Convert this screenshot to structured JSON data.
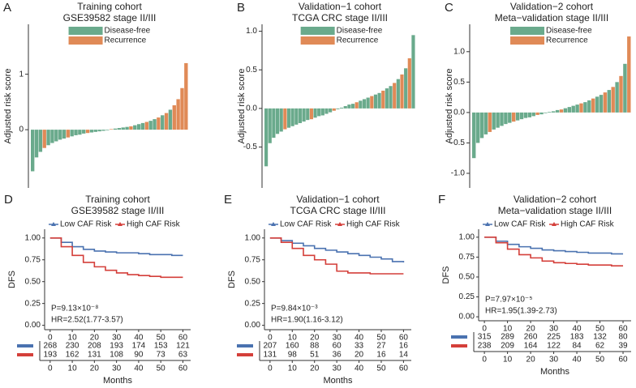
{
  "chart_data": [
    {
      "type": "bar",
      "label": "A",
      "title": "Training cohort",
      "subtitle": "GSE39582 stage II/III",
      "ylabel": "Adjusted risk score",
      "ylim": [
        -1.05,
        1.9
      ],
      "yticks": [
        0,
        1
      ],
      "series": [
        {
          "name": "Disease-free",
          "color": "#6aaa8c",
          "values": [
            -0.75,
            -0.5,
            -0.4,
            null,
            -0.28,
            -0.24,
            -0.21,
            -0.18,
            -0.16,
            null,
            -0.12,
            -0.1,
            -0.09,
            -0.07,
            null,
            -0.05,
            -0.04,
            -0.03,
            -0.02,
            -0.01,
            null,
            0.02,
            0.03,
            0.04,
            0.05,
            null,
            0.08,
            0.1,
            0.12,
            null,
            0.16,
            0.19,
            null,
            0.26,
            null,
            0.36,
            null,
            null,
            null,
            null
          ]
        },
        {
          "name": "Recurrence",
          "color": "#e08a57",
          "values": [
            null,
            null,
            null,
            -0.33,
            null,
            null,
            null,
            null,
            null,
            -0.14,
            null,
            null,
            null,
            null,
            -0.06,
            null,
            null,
            null,
            null,
            null,
            0.01,
            null,
            null,
            null,
            null,
            0.06,
            null,
            null,
            null,
            0.14,
            null,
            null,
            0.22,
            null,
            0.3,
            null,
            0.44,
            0.55,
            0.75,
            1.2
          ]
        }
      ]
    },
    {
      "type": "bar",
      "label": "B",
      "title": "Validation−1 cohort",
      "subtitle": "TCGA CRC stage II/III",
      "ylabel": "Adjusted risk score",
      "ylim": [
        -1.03,
        1.09
      ],
      "yticks": [
        {
          "value": 1,
          "label": "1.0"
        },
        0.5,
        {
          "value": 0,
          "label": "0.0"
        },
        -0.5
      ],
      "series": [
        {
          "name": "Disease-free",
          "color": "#6aaa8c",
          "values": [
            -0.75,
            -0.45,
            -0.38,
            -0.33,
            -0.3,
            null,
            -0.25,
            -0.23,
            -0.21,
            -0.19,
            -0.17,
            -0.15,
            null,
            -0.12,
            -0.1,
            -0.09,
            -0.07,
            -0.05,
            null,
            -0.01,
            0.01,
            0.03,
            0.05,
            0.06,
            null,
            0.1,
            0.12,
            0.14,
            null,
            0.18,
            0.2,
            null,
            0.26,
            0.29,
            null,
            0.38,
            null,
            0.52,
            null,
            0.95
          ]
        },
        {
          "name": "Recurrence",
          "color": "#e08a57",
          "values": [
            null,
            null,
            null,
            null,
            null,
            -0.27,
            null,
            null,
            null,
            null,
            null,
            null,
            -0.14,
            null,
            null,
            null,
            null,
            null,
            -0.03,
            null,
            null,
            null,
            null,
            null,
            0.08,
            null,
            null,
            null,
            0.16,
            null,
            null,
            0.23,
            null,
            null,
            0.33,
            null,
            0.44,
            null,
            0.65,
            null
          ]
        }
      ]
    },
    {
      "type": "bar",
      "label": "C",
      "title": "Validation−2 cohort",
      "subtitle": "Meta−validation stage II/III",
      "ylabel": "Adjusted risk score",
      "ylim": [
        -1.24,
        1.45
      ],
      "yticks": [
        {
          "value": 1,
          "label": "1.0"
        },
        0.5,
        {
          "value": 0,
          "label": "0.0"
        },
        -0.5,
        {
          "value": -1,
          "label": "-1.0"
        }
      ],
      "series": [
        {
          "name": "Disease-free",
          "color": "#6aaa8c",
          "values": [
            -0.75,
            -0.5,
            -0.42,
            -0.36,
            null,
            -0.28,
            -0.25,
            -0.22,
            -0.19,
            -0.17,
            null,
            -0.13,
            -0.11,
            -0.09,
            -0.08,
            -0.06,
            null,
            -0.03,
            -0.01,
            0.01,
            0.02,
            0.04,
            null,
            0.07,
            0.09,
            0.11,
            0.13,
            null,
            0.17,
            0.2,
            null,
            0.26,
            0.29,
            null,
            0.37,
            null,
            0.5,
            null,
            0.8,
            null
          ]
        },
        {
          "name": "Recurrence",
          "color": "#e08a57",
          "values": [
            null,
            null,
            null,
            null,
            -0.32,
            null,
            null,
            null,
            null,
            null,
            -0.15,
            null,
            null,
            null,
            null,
            null,
            -0.04,
            null,
            null,
            null,
            null,
            null,
            0.05,
            null,
            null,
            null,
            null,
            0.15,
            null,
            null,
            0.23,
            null,
            null,
            0.33,
            null,
            0.42,
            null,
            0.6,
            null,
            1.25
          ]
        }
      ]
    },
    {
      "type": "line",
      "step": true,
      "label": "D",
      "title": "Training cohort",
      "subtitle": "GSE39582 stage II/III",
      "ylabel": "DFS",
      "xlabel": "Months",
      "xlim": [
        -2.5,
        63.5
      ],
      "xticks": [
        0,
        10,
        20,
        30,
        40,
        50,
        60
      ],
      "ylim": [
        -0.05,
        1.1
      ],
      "yticks": [
        {
          "value": 0,
          "label": "0.00"
        },
        0.25,
        {
          "value": 0.5,
          "label": "0.50"
        },
        0.75,
        {
          "value": 1,
          "label": "1.00"
        }
      ],
      "x": [
        0,
        5,
        10,
        15,
        20,
        25,
        30,
        35,
        40,
        45,
        50,
        55,
        60
      ],
      "series": [
        {
          "name": "Low CAF Risk",
          "color": "#4a72b0",
          "values": [
            1,
            0.95,
            0.9,
            0.87,
            0.85,
            0.84,
            0.83,
            0.83,
            0.82,
            0.81,
            0.81,
            0.8,
            0.8
          ]
        },
        {
          "name": "High CAF Risk",
          "color": "#d43f3a",
          "values": [
            1,
            0.9,
            0.8,
            0.72,
            0.67,
            0.63,
            0.6,
            0.58,
            0.57,
            0.56,
            0.55,
            0.55,
            0.55
          ]
        }
      ],
      "annotations": [
        "P=9.13×10⁻⁸",
        "HR=2.52(1.77-3.57)"
      ],
      "risk_table": [
        [
          268,
          230,
          208,
          193,
          174,
          153,
          121
        ],
        [
          193,
          162,
          131,
          108,
          90,
          73,
          63
        ]
      ]
    },
    {
      "type": "line",
      "step": true,
      "label": "E",
      "title": "Validation−1 cohort",
      "subtitle": "TCGA CRC stage II/III",
      "ylabel": "DFS",
      "xlabel": "Months",
      "xlim": [
        -2.5,
        63.5
      ],
      "xticks": [
        0,
        10,
        20,
        30,
        40,
        50,
        60
      ],
      "ylim": [
        -0.05,
        1.1
      ],
      "yticks": [
        {
          "value": 0,
          "label": "0.00"
        },
        0.25,
        {
          "value": 0.5,
          "label": "0.50"
        },
        0.75,
        {
          "value": 1,
          "label": "1.00"
        }
      ],
      "x": [
        0,
        5,
        10,
        15,
        20,
        25,
        30,
        35,
        40,
        45,
        50,
        55,
        60
      ],
      "series": [
        {
          "name": "Low CAF Risk",
          "color": "#4a72b0",
          "values": [
            1,
            0.97,
            0.94,
            0.91,
            0.88,
            0.86,
            0.84,
            0.82,
            0.8,
            0.78,
            0.76,
            0.73,
            0.72
          ]
        },
        {
          "name": "High CAF Risk",
          "color": "#d43f3a",
          "values": [
            1,
            0.95,
            0.88,
            0.8,
            0.75,
            0.7,
            0.62,
            0.6,
            0.6,
            0.59,
            0.59,
            0.59,
            0.59
          ]
        }
      ],
      "annotations": [
        "P=9.84×10⁻³",
        "HR=1.90(1.16-3.12)"
      ],
      "risk_table": [
        [
          207,
          160,
          88,
          60,
          33,
          27,
          16
        ],
        [
          131,
          98,
          51,
          36,
          20,
          16,
          14
        ]
      ]
    },
    {
      "type": "line",
      "step": true,
      "label": "F",
      "title": "Validation−2 cohort",
      "subtitle": "Meta−validation stage II/III",
      "ylabel": "DFS",
      "xlabel": "Months",
      "xlim": [
        -2.5,
        63.5
      ],
      "xticks": [
        0,
        10,
        20,
        30,
        40,
        50,
        60
      ],
      "ylim": [
        -0.05,
        1.1
      ],
      "yticks": [
        {
          "value": 0,
          "label": "0.00"
        },
        0.25,
        {
          "value": 0.5,
          "label": "0.50"
        },
        0.75,
        {
          "value": 1,
          "label": "1.00"
        }
      ],
      "x": [
        0,
        5,
        10,
        15,
        20,
        25,
        30,
        35,
        40,
        45,
        50,
        55,
        60
      ],
      "series": [
        {
          "name": "Low CAF Risk",
          "color": "#4a72b0",
          "values": [
            1,
            0.95,
            0.91,
            0.88,
            0.86,
            0.84,
            0.83,
            0.82,
            0.81,
            0.8,
            0.8,
            0.79,
            0.79
          ]
        },
        {
          "name": "High CAF Risk",
          "color": "#d43f3a",
          "values": [
            1,
            0.93,
            0.85,
            0.78,
            0.74,
            0.7,
            0.68,
            0.67,
            0.66,
            0.65,
            0.65,
            0.64,
            0.64
          ]
        }
      ],
      "annotations": [
        "P=7.97×10⁻⁵",
        "HR=1.95(1.39-2.73)"
      ],
      "risk_table": [
        [
          315,
          289,
          260,
          225,
          183,
          132,
          80
        ],
        [
          238,
          209,
          164,
          122,
          84,
          62,
          39
        ]
      ]
    }
  ]
}
